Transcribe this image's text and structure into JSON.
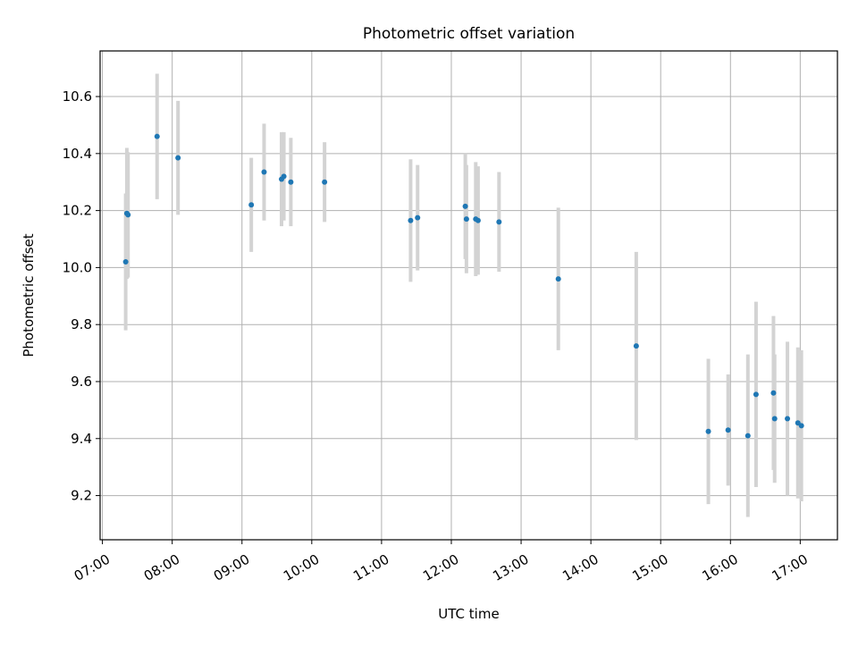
{
  "chart_data": {
    "type": "scatter",
    "title": "Photometric offset variation",
    "xlabel": "UTC time",
    "ylabel": "Photometric offset",
    "xlim": [
      "06:58",
      "17:32"
    ],
    "ylim": [
      9.045,
      10.76
    ],
    "grid": true,
    "x_ticks": [
      "07:00",
      "08:00",
      "09:00",
      "10:00",
      "11:00",
      "12:00",
      "13:00",
      "14:00",
      "15:00",
      "16:00",
      "17:00"
    ],
    "y_ticks": [
      9.2,
      9.4,
      9.6,
      9.8,
      10.0,
      10.2,
      10.4,
      10.6
    ],
    "y_tick_labels": [
      "9.2",
      "9.4",
      "9.6",
      "9.8",
      "10.0",
      "10.2",
      "10.4",
      "10.6"
    ],
    "series": [
      {
        "marker_color": "#1f77b4",
        "errorbar_color": "#d3d3d3",
        "points": [
          {
            "x": "07:20",
            "y": 10.02,
            "err": 0.24
          },
          {
            "x": "07:21",
            "y": 10.19,
            "err": 0.23
          },
          {
            "x": "07:22",
            "y": 10.185,
            "err": 0.22
          },
          {
            "x": "07:47",
            "y": 10.46,
            "err": 0.22
          },
          {
            "x": "08:05",
            "y": 10.385,
            "err": 0.2
          },
          {
            "x": "09:08",
            "y": 10.22,
            "err": 0.165
          },
          {
            "x": "09:19",
            "y": 10.335,
            "err": 0.17
          },
          {
            "x": "09:34",
            "y": 10.31,
            "err": 0.165
          },
          {
            "x": "09:36",
            "y": 10.32,
            "err": 0.155
          },
          {
            "x": "09:42",
            "y": 10.3,
            "err": 0.155
          },
          {
            "x": "10:11",
            "y": 10.3,
            "err": 0.14
          },
          {
            "x": "11:25",
            "y": 10.165,
            "err": 0.215
          },
          {
            "x": "11:31",
            "y": 10.175,
            "err": 0.185
          },
          {
            "x": "12:12",
            "y": 10.215,
            "err": 0.185
          },
          {
            "x": "12:13",
            "y": 10.17,
            "err": 0.19
          },
          {
            "x": "12:21",
            "y": 10.17,
            "err": 0.2
          },
          {
            "x": "12:23",
            "y": 10.165,
            "err": 0.19
          },
          {
            "x": "12:41",
            "y": 10.16,
            "err": 0.175
          },
          {
            "x": "13:32",
            "y": 9.96,
            "err": 0.25
          },
          {
            "x": "14:39",
            "y": 9.725,
            "err": 0.33
          },
          {
            "x": "15:41",
            "y": 9.425,
            "err": 0.255
          },
          {
            "x": "15:58",
            "y": 9.43,
            "err": 0.195
          },
          {
            "x": "16:15",
            "y": 9.41,
            "err": 0.285
          },
          {
            "x": "16:22",
            "y": 9.555,
            "err": 0.325
          },
          {
            "x": "16:37",
            "y": 9.56,
            "err": 0.27
          },
          {
            "x": "16:38",
            "y": 9.47,
            "err": 0.225
          },
          {
            "x": "16:49",
            "y": 9.47,
            "err": 0.27
          },
          {
            "x": "16:58",
            "y": 9.455,
            "err": 0.265
          },
          {
            "x": "17:01",
            "y": 9.445,
            "err": 0.265
          }
        ]
      }
    ]
  }
}
